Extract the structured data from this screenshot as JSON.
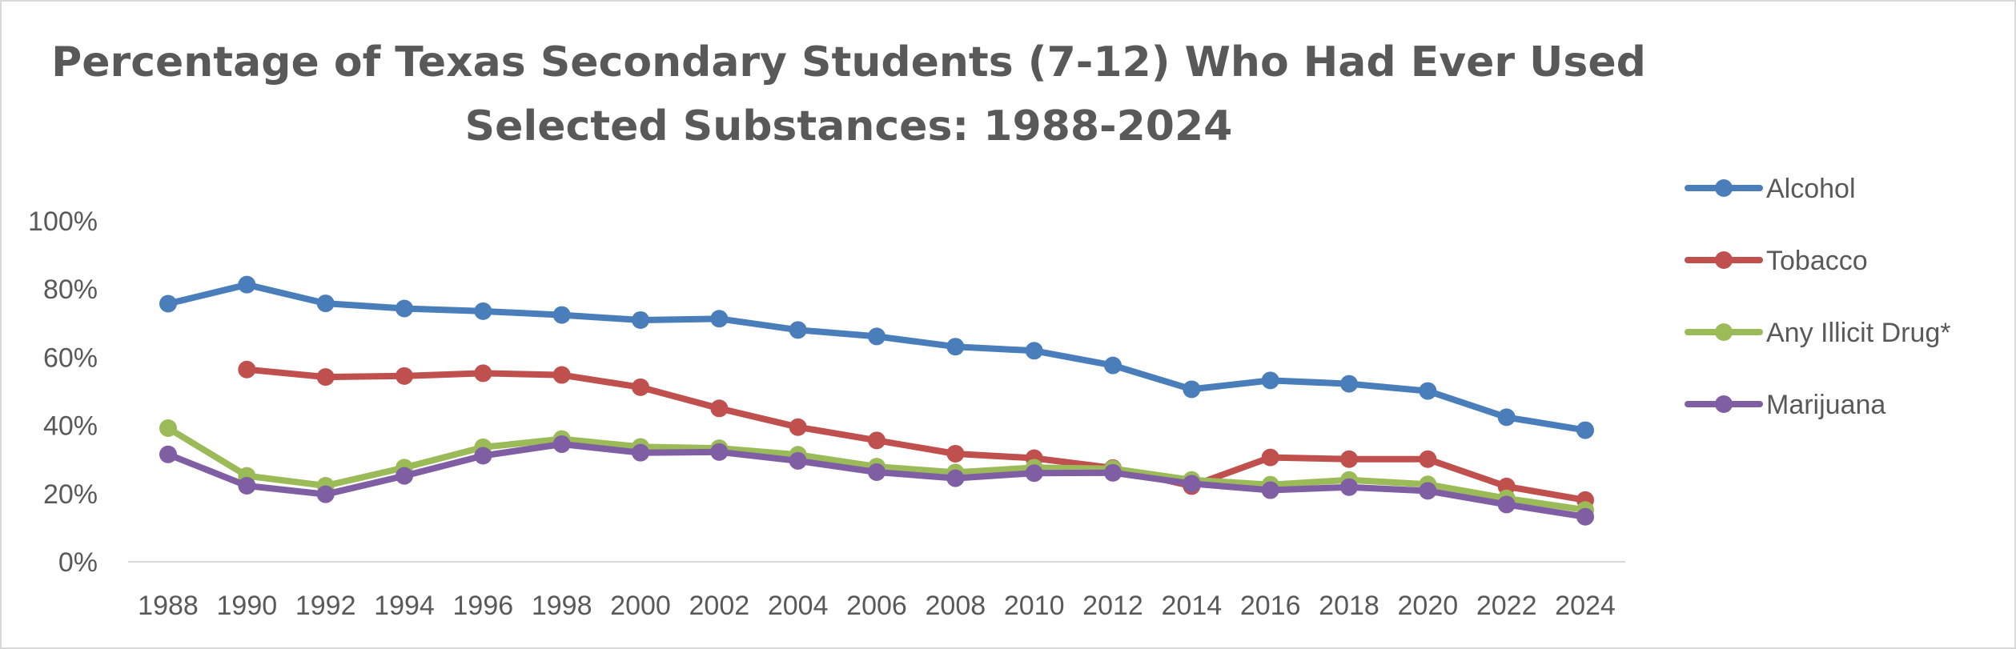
{
  "chart_data": {
    "type": "line",
    "title_line1": "Percentage of Texas Secondary Students (7-12) Who Had Ever Used",
    "title_line2": "Selected Substances: 1988-2024",
    "x": [
      "1988",
      "1990",
      "1992",
      "1994",
      "1996",
      "1998",
      "2000",
      "2002",
      "2004",
      "2006",
      "2008",
      "2010",
      "2012",
      "2014",
      "2016",
      "2018",
      "2020",
      "2022",
      "2024"
    ],
    "y_ticks": [
      "0%",
      "20%",
      "40%",
      "60%",
      "80%",
      "100%"
    ],
    "ylim": [
      0,
      100
    ],
    "legend_position": "right",
    "series": [
      {
        "name": "Alcohol",
        "color": "#4a7ebb",
        "values": [
          75.7,
          81.3,
          75.8,
          74.3,
          73.5,
          72.4,
          70.9,
          71.3,
          68.0,
          66.1,
          63.1,
          61.9,
          57.6,
          50.6,
          53.2,
          52.2,
          50.1,
          42.4,
          38.6
        ]
      },
      {
        "name": "Tobacco",
        "color": "#c0504d",
        "values": [
          null,
          56.4,
          54.2,
          54.5,
          55.3,
          54.8,
          51.2,
          45.0,
          39.5,
          35.6,
          31.7,
          30.4,
          27.5,
          22.2,
          30.6,
          30.1,
          30.1,
          22.1,
          18.1
        ]
      },
      {
        "name": "Any Illicit Drug*",
        "color": "#9bbb59",
        "values": [
          39.2,
          25.2,
          22.3,
          27.6,
          33.6,
          36.0,
          33.7,
          33.3,
          31.4,
          27.9,
          26.2,
          27.6,
          27.3,
          24.0,
          22.6,
          24.0,
          22.7,
          18.6,
          15.2
        ]
      },
      {
        "name": "Marijuana",
        "color": "#7f5ea4",
        "values": [
          31.5,
          22.3,
          19.8,
          25.2,
          31.1,
          34.5,
          32.0,
          32.2,
          29.6,
          26.3,
          24.5,
          26.0,
          26.1,
          22.9,
          21.0,
          21.9,
          20.8,
          16.8,
          13.2
        ]
      }
    ]
  }
}
